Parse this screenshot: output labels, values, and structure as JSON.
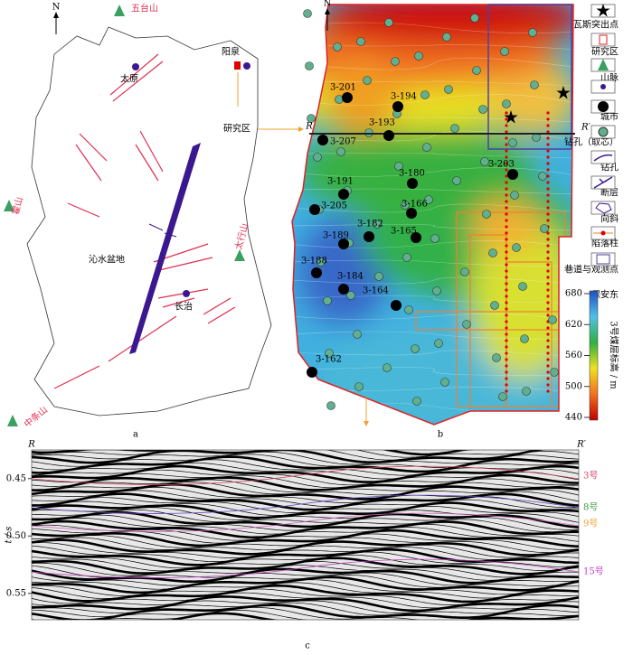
{
  "panel_a": {
    "north": "N",
    "mountains": [
      "五台山",
      "霍山",
      "太行山",
      "中条山"
    ],
    "cities": [
      "太原",
      "阳泉",
      "长治"
    ],
    "basin": "沁水盆地",
    "study_area": "研究区",
    "label": "a"
  },
  "panel_b": {
    "north": "N",
    "boreholes": [
      "3-201",
      "3-194",
      "3-193",
      "3-207",
      "3-180",
      "3-191",
      "3-166",
      "3-205",
      "3-182",
      "3-165",
      "3-189",
      "3-188",
      "3-184",
      "3-164",
      "3-162",
      "3-203"
    ],
    "section_start": "R",
    "section_end": "R′",
    "legend": [
      "瓦斯突出点",
      "研究区",
      "山脉",
      "城市",
      "钻孔（取芯）",
      "钻孔",
      "断层",
      "向斜",
      "陷落柱",
      "巷道与观测点",
      "保安东"
    ],
    "colorbar": {
      "title": "3号煤层标高 / m",
      "lim": [
        440,
        680
      ],
      "ticks": [
        440,
        500,
        560,
        620,
        680
      ]
    },
    "label": "b"
  },
  "panel_c": {
    "start": "R",
    "end": "R′",
    "y_label": "t / s",
    "ylim": [
      0.425,
      0.573
    ],
    "yticks": [
      0.45,
      {
        "value": 0.5,
        "label": "0.50"
      },
      0.55
    ],
    "horizons": [
      "3号",
      "8号",
      "9号",
      "15号"
    ],
    "label": "c"
  }
}
